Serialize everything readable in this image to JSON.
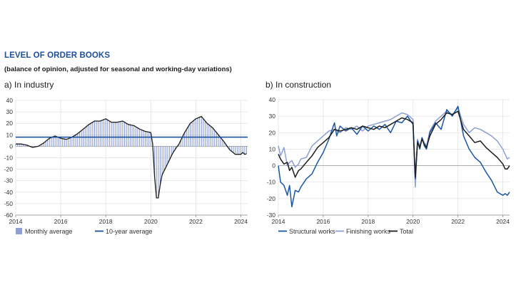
{
  "header": {
    "title": "LEVEL OF ORDER BOOKS",
    "subtitle": "(balance of opinion, adjusted for seasonal and working-day variations)"
  },
  "colors": {
    "title": "#1c4f9c",
    "bars": "#8e9fd3",
    "average_line": "#1c4f9c",
    "structural": "#1a56a6",
    "finishing": "#8e9fd3",
    "total": "#1d1d1b",
    "grid": "#e2e2e2"
  },
  "chart_data": [
    {
      "type": "bar",
      "panel": "a) In industry",
      "title": "a)  In industry",
      "ylim": [
        -60,
        40
      ],
      "yticks": [
        -60,
        -50,
        -40,
        -30,
        -20,
        -10,
        0,
        10,
        20,
        30,
        40
      ],
      "xlim": [
        2014,
        2024.3
      ],
      "xticks": [
        2014,
        2016,
        2018,
        2020,
        2022,
        2024
      ],
      "average": 8,
      "legend": [
        "Monthly average",
        "10-year average"
      ],
      "series": [
        {
          "name": "Monthly average",
          "x": [
            2014.0,
            2014.25,
            2014.5,
            2014.75,
            2015.0,
            2015.25,
            2015.5,
            2015.75,
            2016.0,
            2016.25,
            2016.5,
            2016.75,
            2017.0,
            2017.25,
            2017.5,
            2017.75,
            2018.0,
            2018.25,
            2018.5,
            2018.75,
            2019.0,
            2019.25,
            2019.5,
            2019.75,
            2020.0,
            2020.1,
            2020.2,
            2020.3,
            2020.4,
            2020.5,
            2020.75,
            2021.0,
            2021.25,
            2021.5,
            2021.75,
            2022.0,
            2022.25,
            2022.5,
            2022.75,
            2023.0,
            2023.25,
            2023.5,
            2023.75,
            2024.0,
            2024.1,
            2024.2,
            2024.3
          ],
          "values": [
            2,
            2,
            1,
            -1,
            0,
            3,
            7,
            9,
            7,
            6,
            8,
            11,
            15,
            19,
            22,
            22,
            24,
            21,
            21,
            22,
            19,
            18,
            15,
            13,
            12,
            0,
            -40,
            -50,
            -35,
            -25,
            -15,
            -5,
            2,
            12,
            20,
            24,
            26,
            20,
            16,
            10,
            4,
            -3,
            -7,
            -7,
            -5,
            -8,
            -5
          ]
        }
      ]
    },
    {
      "type": "line",
      "panel": "b) In construction",
      "title": "b)  In construction",
      "ylim": [
        -30,
        40
      ],
      "yticks": [
        -30,
        -20,
        -10,
        0,
        10,
        20,
        30,
        40
      ],
      "xlim": [
        2014,
        2024.3
      ],
      "xticks": [
        2014,
        2016,
        2018,
        2020,
        2022,
        2024
      ],
      "legend": [
        "Structural works",
        "Finishing works",
        "Total"
      ],
      "series": [
        {
          "name": "Structural works",
          "x": [
            2014.0,
            2014.1,
            2014.25,
            2014.4,
            2014.5,
            2014.6,
            2014.75,
            2014.9,
            2015.0,
            2015.25,
            2015.5,
            2015.75,
            2016.0,
            2016.25,
            2016.5,
            2016.6,
            2016.75,
            2017.0,
            2017.25,
            2017.5,
            2017.75,
            2018.0,
            2018.25,
            2018.5,
            2018.75,
            2019.0,
            2019.25,
            2019.5,
            2019.75,
            2020.0,
            2020.1,
            2020.2,
            2020.3,
            2020.4,
            2020.5,
            2020.6,
            2020.75,
            2021.0,
            2021.25,
            2021.5,
            2021.75,
            2022.0,
            2022.25,
            2022.5,
            2022.75,
            2023.0,
            2023.25,
            2023.5,
            2023.75,
            2024.0,
            2024.1,
            2024.2,
            2024.3
          ],
          "values": [
            0,
            -10,
            -12,
            -18,
            -12,
            -25,
            -15,
            -16,
            -13,
            -8,
            -5,
            2,
            8,
            16,
            26,
            18,
            24,
            21,
            23,
            19,
            24,
            21,
            24,
            22,
            25,
            20,
            27,
            26,
            30,
            25,
            -8,
            15,
            10,
            17,
            12,
            10,
            20,
            26,
            22,
            34,
            30,
            36,
            18,
            10,
            5,
            2,
            -4,
            -9,
            -16,
            -18,
            -17,
            -18,
            -16
          ]
        },
        {
          "name": "Finishing works",
          "x": [
            2014.0,
            2014.1,
            2014.25,
            2014.4,
            2014.5,
            2014.6,
            2014.75,
            2014.9,
            2015.0,
            2015.25,
            2015.5,
            2015.75,
            2016.0,
            2016.25,
            2016.5,
            2016.75,
            2017.0,
            2017.25,
            2017.5,
            2017.75,
            2018.0,
            2018.25,
            2018.5,
            2018.75,
            2019.0,
            2019.25,
            2019.5,
            2019.75,
            2020.0,
            2020.1,
            2020.2,
            2020.3,
            2020.4,
            2020.5,
            2020.6,
            2020.75,
            2021.0,
            2021.25,
            2021.5,
            2021.75,
            2022.0,
            2022.25,
            2022.5,
            2022.75,
            2023.0,
            2023.25,
            2023.5,
            2023.75,
            2024.0,
            2024.1,
            2024.2,
            2024.3
          ],
          "values": [
            12,
            6,
            11,
            0,
            2,
            3,
            -1,
            1,
            4,
            5,
            12,
            15,
            18,
            21,
            22,
            20,
            23,
            22,
            24,
            21,
            24,
            25,
            26,
            27,
            28,
            30,
            32,
            31,
            28,
            -13,
            16,
            12,
            17,
            14,
            12,
            21,
            27,
            30,
            33,
            31,
            35,
            25,
            20,
            23,
            22,
            20,
            18,
            15,
            10,
            7,
            4,
            5
          ]
        },
        {
          "name": "Total",
          "x": [
            2014.0,
            2014.1,
            2014.25,
            2014.4,
            2014.5,
            2014.6,
            2014.75,
            2014.9,
            2015.0,
            2015.25,
            2015.5,
            2015.75,
            2016.0,
            2016.25,
            2016.5,
            2016.75,
            2017.0,
            2017.25,
            2017.5,
            2017.75,
            2018.0,
            2018.25,
            2018.5,
            2018.75,
            2019.0,
            2019.25,
            2019.5,
            2019.75,
            2020.0,
            2020.1,
            2020.2,
            2020.3,
            2020.4,
            2020.5,
            2020.6,
            2020.75,
            2021.0,
            2021.25,
            2021.5,
            2021.75,
            2022.0,
            2022.25,
            2022.5,
            2022.75,
            2023.0,
            2023.25,
            2023.5,
            2023.75,
            2024.0,
            2024.1,
            2024.2,
            2024.3
          ],
          "values": [
            7,
            4,
            1,
            2,
            -3,
            -1,
            -7,
            -3,
            -2,
            2,
            6,
            11,
            14,
            17,
            22,
            21,
            22,
            23,
            22,
            24,
            23,
            22,
            24,
            23,
            25,
            27,
            29,
            28,
            26,
            -7,
            14,
            11,
            16,
            13,
            11,
            18,
            25,
            28,
            32,
            31,
            33,
            22,
            18,
            14,
            15,
            11,
            8,
            5,
            1,
            -2,
            -2,
            0
          ]
        }
      ]
    }
  ]
}
